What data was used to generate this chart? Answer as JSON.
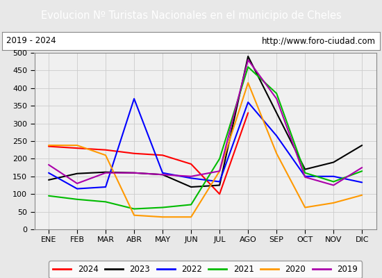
{
  "title": "Evolucion Nº Turistas Nacionales en el municipio de Cheles",
  "subtitle_left": "2019 - 2024",
  "subtitle_right": "http://www.foro-ciudad.com",
  "title_bg_color": "#4472c4",
  "title_text_color": "#ffffff",
  "months": [
    "ENE",
    "FEB",
    "MAR",
    "ABR",
    "MAY",
    "JUN",
    "JUL",
    "AGO",
    "SEP",
    "OCT",
    "NOV",
    "DIC"
  ],
  "ylim": [
    0,
    500
  ],
  "yticks": [
    0,
    50,
    100,
    150,
    200,
    250,
    300,
    350,
    400,
    450,
    500
  ],
  "series": {
    "2024": {
      "color": "#ff0000",
      "data": [
        235,
        230,
        225,
        215,
        210,
        185,
        100,
        330,
        null,
        null,
        null,
        null
      ]
    },
    "2023": {
      "color": "#000000",
      "data": [
        140,
        158,
        162,
        160,
        155,
        120,
        125,
        490,
        330,
        170,
        190,
        238
      ]
    },
    "2022": {
      "color": "#0000ff",
      "data": [
        160,
        115,
        120,
        370,
        160,
        145,
        135,
        360,
        265,
        150,
        150,
        133
      ]
    },
    "2021": {
      "color": "#00bb00",
      "data": [
        95,
        85,
        78,
        58,
        62,
        70,
        200,
        460,
        385,
        160,
        135,
        165
      ]
    },
    "2020": {
      "color": "#ff9900",
      "data": [
        238,
        238,
        210,
        40,
        35,
        35,
        165,
        415,
        215,
        62,
        75,
        97
      ]
    },
    "2019": {
      "color": "#aa00aa",
      "data": [
        183,
        130,
        160,
        160,
        155,
        150,
        165,
        480,
        370,
        148,
        125,
        175
      ]
    }
  },
  "bg_color": "#e8e8e8",
  "plot_bg_color": "#f0f0f0",
  "grid_color": "#cccccc",
  "border_color": "#aaaaaa",
  "legend_order": [
    "2024",
    "2023",
    "2022",
    "2021",
    "2020",
    "2019"
  ]
}
